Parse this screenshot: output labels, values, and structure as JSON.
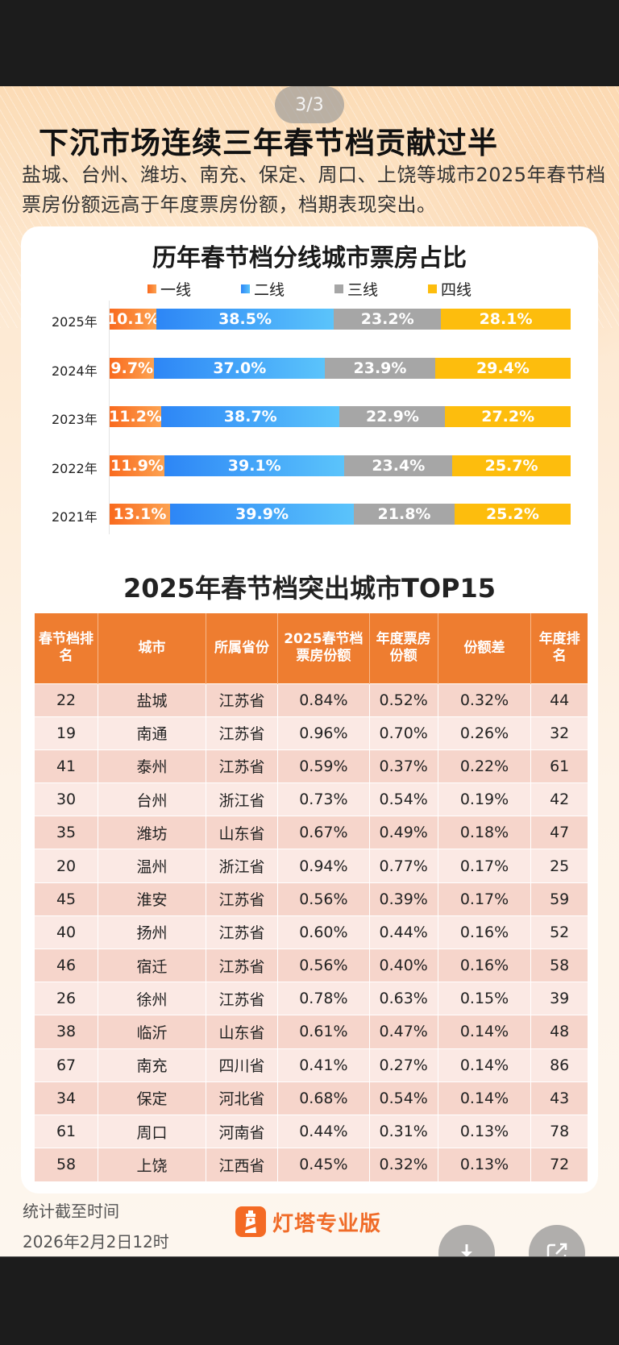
{
  "pager": {
    "label": "3/3"
  },
  "header": {
    "title": "下沉市场连续三年春节档贡献过半",
    "subtitle": "盐城、台州、潍坊、南充、保定、周口、上饶等城市2025年春节档票房份额远高于年度票房份额，档期表现突出。"
  },
  "chart_data": {
    "type": "bar",
    "orientation": "horizontal-stacked-100",
    "title": "历年春节档分线城市票房占比",
    "xlabel": "",
    "ylabel": "",
    "categories": [
      "2025年",
      "2024年",
      "2023年",
      "2022年",
      "2021年"
    ],
    "legend_position": "top-center",
    "grid": false,
    "xlim": [
      0,
      100
    ],
    "series": [
      {
        "name": "一线",
        "color": "#f96a1e",
        "color_end": "#fca251",
        "values": [
          10.1,
          9.7,
          11.2,
          11.9,
          13.1
        ],
        "labels": [
          "10.1%",
          "9.7%",
          "11.2%",
          "11.9%",
          "13.1%"
        ]
      },
      {
        "name": "二线",
        "color": "#2d86f6",
        "color_end": "#5bc4fb",
        "values": [
          38.5,
          37.0,
          38.7,
          39.1,
          39.9
        ],
        "labels": [
          "38.5%",
          "37.0%",
          "38.7%",
          "39.1%",
          "39.9%"
        ]
      },
      {
        "name": "三线",
        "color": "#a6a6a6",
        "color_end": "#a6a6a6",
        "values": [
          23.2,
          23.9,
          22.9,
          23.4,
          21.8
        ],
        "labels": [
          "23.2%",
          "23.9%",
          "22.9%",
          "23.4%",
          "21.8%"
        ]
      },
      {
        "name": "四线",
        "color": "#fdbd0d",
        "color_end": "#fdbd0d",
        "values": [
          28.1,
          29.4,
          27.2,
          25.7,
          25.2
        ],
        "labels": [
          "28.1%",
          "29.4%",
          "27.2%",
          "25.7%",
          "25.2%"
        ]
      }
    ]
  },
  "table": {
    "title": "2025年春节档突出城市TOP15",
    "header_color": "#ee7d30",
    "columns": [
      "春节档排名",
      "城市",
      "所属省份",
      "2025春节档票房份额",
      "年度票房份额",
      "份额差",
      "年度排名"
    ],
    "rows": [
      [
        "22",
        "盐城",
        "江苏省",
        "0.84%",
        "0.52%",
        "0.32%",
        "44"
      ],
      [
        "19",
        "南通",
        "江苏省",
        "0.96%",
        "0.70%",
        "0.26%",
        "32"
      ],
      [
        "41",
        "泰州",
        "江苏省",
        "0.59%",
        "0.37%",
        "0.22%",
        "61"
      ],
      [
        "30",
        "台州",
        "浙江省",
        "0.73%",
        "0.54%",
        "0.19%",
        "42"
      ],
      [
        "35",
        "潍坊",
        "山东省",
        "0.67%",
        "0.49%",
        "0.18%",
        "47"
      ],
      [
        "20",
        "温州",
        "浙江省",
        "0.94%",
        "0.77%",
        "0.17%",
        "25"
      ],
      [
        "45",
        "淮安",
        "江苏省",
        "0.56%",
        "0.39%",
        "0.17%",
        "59"
      ],
      [
        "40",
        "扬州",
        "江苏省",
        "0.60%",
        "0.44%",
        "0.16%",
        "52"
      ],
      [
        "46",
        "宿迁",
        "江苏省",
        "0.56%",
        "0.40%",
        "0.16%",
        "58"
      ],
      [
        "26",
        "徐州",
        "江苏省",
        "0.78%",
        "0.63%",
        "0.15%",
        "39"
      ],
      [
        "38",
        "临沂",
        "山东省",
        "0.61%",
        "0.47%",
        "0.14%",
        "48"
      ],
      [
        "67",
        "南充",
        "四川省",
        "0.41%",
        "0.27%",
        "0.14%",
        "86"
      ],
      [
        "34",
        "保定",
        "河北省",
        "0.68%",
        "0.54%",
        "0.14%",
        "43"
      ],
      [
        "61",
        "周口",
        "河南省",
        "0.44%",
        "0.31%",
        "0.13%",
        "78"
      ],
      [
        "58",
        "上饶",
        "江西省",
        "0.45%",
        "0.32%",
        "0.13%",
        "72"
      ]
    ]
  },
  "footer": {
    "label": "统计截至时间",
    "date": "2026年2月2日12时",
    "brand_name": "灯塔专业版",
    "brand_color": "#f06b28"
  },
  "actions": {
    "download_icon": "download-icon",
    "share_icon": "share-icon"
  }
}
